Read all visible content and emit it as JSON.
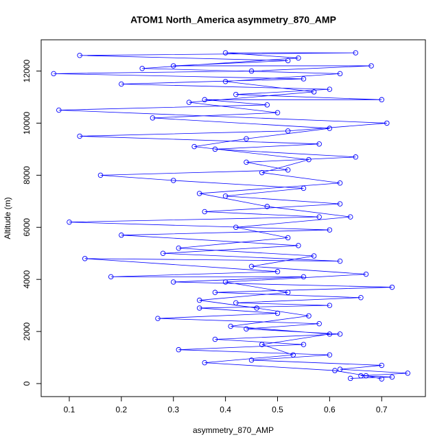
{
  "chart_data": {
    "type": "line",
    "title": "ATOM1 North_America asymmetry_870_AMP",
    "x_label": "asymmetry_870_AMP",
    "y_label": "Altitude (m)",
    "xlim": [
      0.046,
      0.784
    ],
    "ylim": [
      -500,
      13200
    ],
    "xticks": [
      0.1,
      0.2,
      0.3,
      0.4,
      0.5,
      0.6,
      0.7
    ],
    "yticks": [
      0,
      2000,
      4000,
      6000,
      8000,
      10000,
      12000
    ],
    "series": [
      {
        "color": "#0000ff",
        "x": [
          0.64,
          0.72,
          0.66,
          0.75,
          0.62,
          0.7,
          0.45,
          0.6,
          0.31,
          0.55,
          0.38,
          0.62,
          0.44,
          0.58,
          0.27,
          0.5,
          0.35,
          0.6,
          0.42,
          0.66,
          0.38,
          0.72,
          0.3,
          0.55,
          0.18,
          0.5,
          0.13,
          0.62,
          0.28,
          0.54,
          0.2,
          0.6,
          0.1,
          0.58,
          0.36,
          0.62,
          0.4,
          0.55,
          0.3,
          0.16,
          0.52,
          0.44,
          0.65,
          0.38,
          0.58,
          0.12,
          0.52,
          0.71,
          0.08,
          0.48,
          0.36,
          0.7,
          0.42,
          0.6,
          0.2,
          0.55,
          0.07,
          0.45,
          0.68,
          0.3,
          0.52,
          0.12,
          0.65,
          0.4,
          0.54,
          0.24,
          0.62,
          0.4,
          0.57,
          0.33,
          0.5,
          0.26,
          0.6,
          0.44,
          0.34,
          0.56,
          0.47,
          0.62,
          0.35,
          0.48,
          0.64,
          0.42,
          0.52,
          0.31,
          0.57,
          0.45,
          0.67,
          0.4,
          0.52,
          0.35,
          0.46,
          0.56,
          0.41,
          0.6,
          0.47,
          0.53,
          0.36,
          0.61,
          0.67,
          0.7
        ],
        "values": [
          200,
          250,
          300,
          400,
          550,
          700,
          900,
          1100,
          1300,
          1500,
          1700,
          1900,
          2100,
          2300,
          2500,
          2700,
          2900,
          3000,
          3100,
          3300,
          3500,
          3700,
          3900,
          4100,
          4100,
          4300,
          4800,
          4700,
          5000,
          5300,
          5700,
          5900,
          6200,
          6400,
          6600,
          6900,
          7200,
          7500,
          7800,
          8000,
          8200,
          8500,
          8700,
          9000,
          9200,
          9500,
          9700,
          10000,
          10500,
          10700,
          10900,
          10900,
          11100,
          11300,
          11500,
          11700,
          11900,
          12000,
          12200,
          12200,
          12400,
          12600,
          12700,
          12700,
          12500,
          12100,
          11900,
          11600,
          11200,
          10800,
          10400,
          10200,
          9800,
          9400,
          9100,
          8600,
          8100,
          7700,
          7300,
          6800,
          6400,
          6000,
          5600,
          5200,
          4900,
          4500,
          4200,
          3900,
          3500,
          3200,
          2900,
          2600,
          2200,
          1900,
          1500,
          1100,
          800,
          500,
          300,
          180
        ]
      }
    ]
  }
}
